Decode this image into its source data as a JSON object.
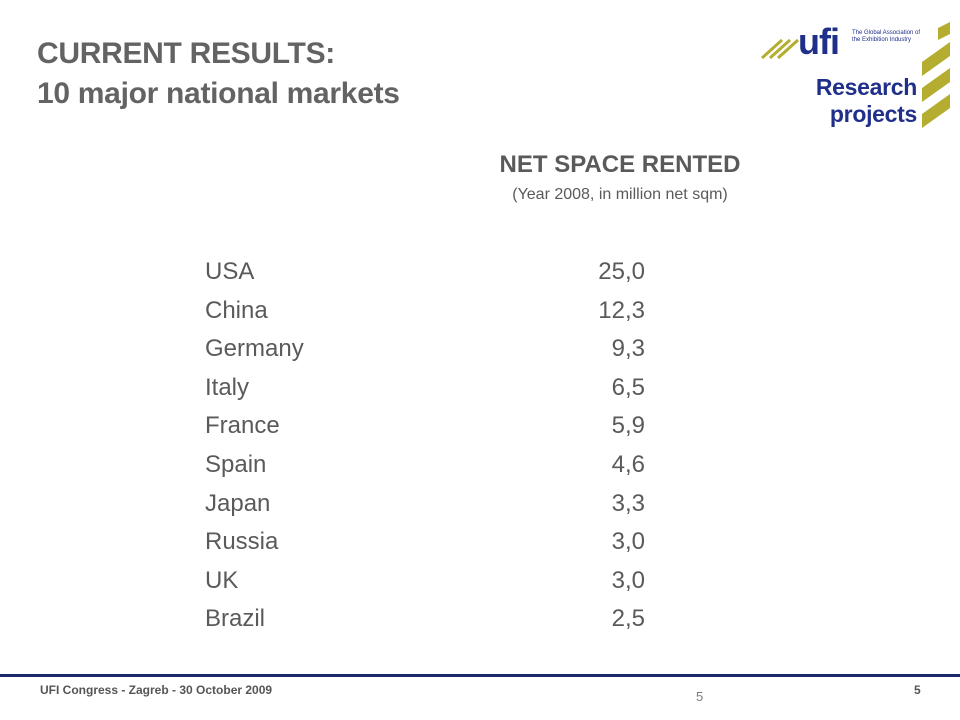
{
  "slide": {
    "title_line1": "CURRENT RESULTS:",
    "title_line2": "10 major national markets"
  },
  "logo": {
    "wordmark": "ufi",
    "tagline": "The Global Association of the Exhibition Industry",
    "research_line1": "Research",
    "research_line2": "projects",
    "colors": {
      "navy": "#1f2f8a",
      "olive": "#b5ad2f"
    }
  },
  "table": {
    "heading": "NET SPACE RENTED",
    "subheading": "(Year 2008, in million net sqm)",
    "rows": [
      {
        "country": "USA",
        "value": "25,0"
      },
      {
        "country": "China",
        "value": "12,3"
      },
      {
        "country": "Germany",
        "value": "9,3"
      },
      {
        "country": "Italy",
        "value": "6,5"
      },
      {
        "country": "France",
        "value": "5,9"
      },
      {
        "country": "Spain",
        "value": "4,6"
      },
      {
        "country": "Japan",
        "value": "3,3"
      },
      {
        "country": "Russia",
        "value": "3,0"
      },
      {
        "country": "UK",
        "value": "3,0"
      },
      {
        "country": "Brazil",
        "value": "2,5"
      }
    ]
  },
  "footer": {
    "text": "UFI Congress - Zagreb - 30 October 2009",
    "slide_number": "5",
    "page_number": "5"
  }
}
